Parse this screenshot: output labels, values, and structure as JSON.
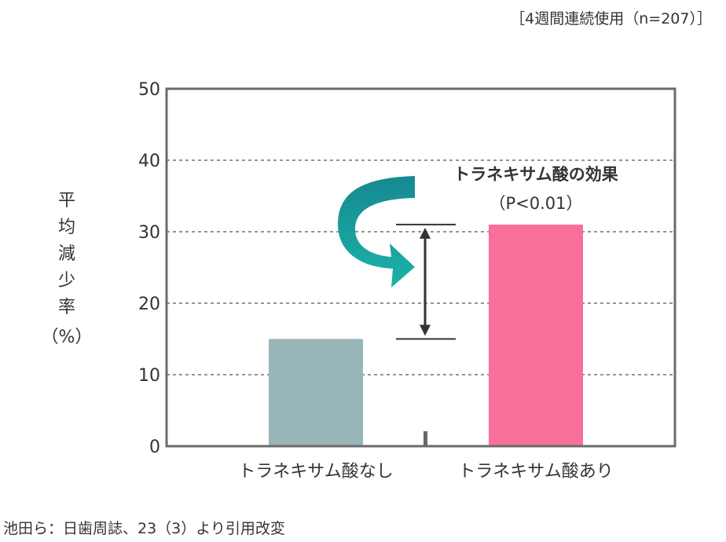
{
  "header_note": "［4週間連続使用（n=207）］",
  "source_note": "池田ら：日歯周誌、23（3）より引用改変",
  "chart_data": {
    "type": "bar",
    "categories": [
      "トラネキサム酸なし",
      "トラネキサム酸あり"
    ],
    "values": [
      15,
      31
    ],
    "colors": [
      "#98B5B8",
      "#F8709A"
    ],
    "ylabel": [
      "平",
      "均",
      "減",
      "少",
      "率",
      "（%）"
    ],
    "ylim": [
      0,
      50
    ],
    "yticks": [
      0,
      10,
      20,
      30,
      40,
      50
    ],
    "grid": "dashed",
    "annotation": {
      "title": "トラネキサム酸の効果",
      "pvalue": "（P<0.01）"
    }
  }
}
